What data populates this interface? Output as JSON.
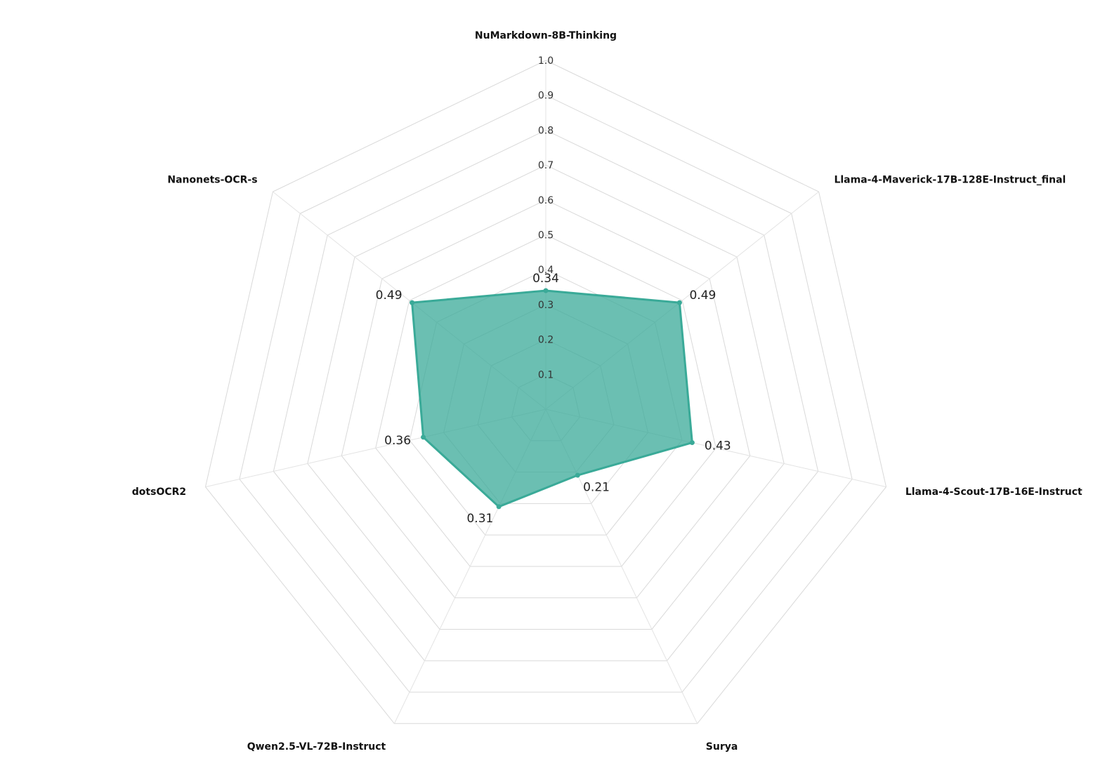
{
  "chart_data": {
    "type": "radar",
    "title": "",
    "axes": [
      "NuMarkdown-8B-Thinking",
      "Llama-4-Maverick-17B-128E-Instruct_final",
      "Llama-4-Scout-17B-16E-Instruct",
      "Surya",
      "Qwen2.5-VL-72B-Instruct",
      "dotsOCR2",
      "Nanonets-OCR-s"
    ],
    "range": [
      0,
      1.0
    ],
    "ticks": [
      0.1,
      0.2,
      0.3,
      0.4,
      0.5,
      0.6,
      0.7,
      0.8,
      0.9,
      1.0
    ],
    "tick_labels": [
      "0.1",
      "0.2",
      "0.3",
      "0.4",
      "0.5",
      "0.6",
      "0.7",
      "0.8",
      "0.9",
      "1.0"
    ],
    "grid": true,
    "legend": false,
    "series": [
      {
        "values": [
          0.34,
          0.49,
          0.43,
          0.21,
          0.31,
          0.36,
          0.49
        ],
        "value_labels": [
          "0.34",
          "0.49",
          "0.43",
          "0.21",
          "0.31",
          "0.36",
          "0.49"
        ],
        "color": "#3aaa98",
        "fill_color": "#3aaa98",
        "fill_opacity": 0.75
      }
    ]
  }
}
